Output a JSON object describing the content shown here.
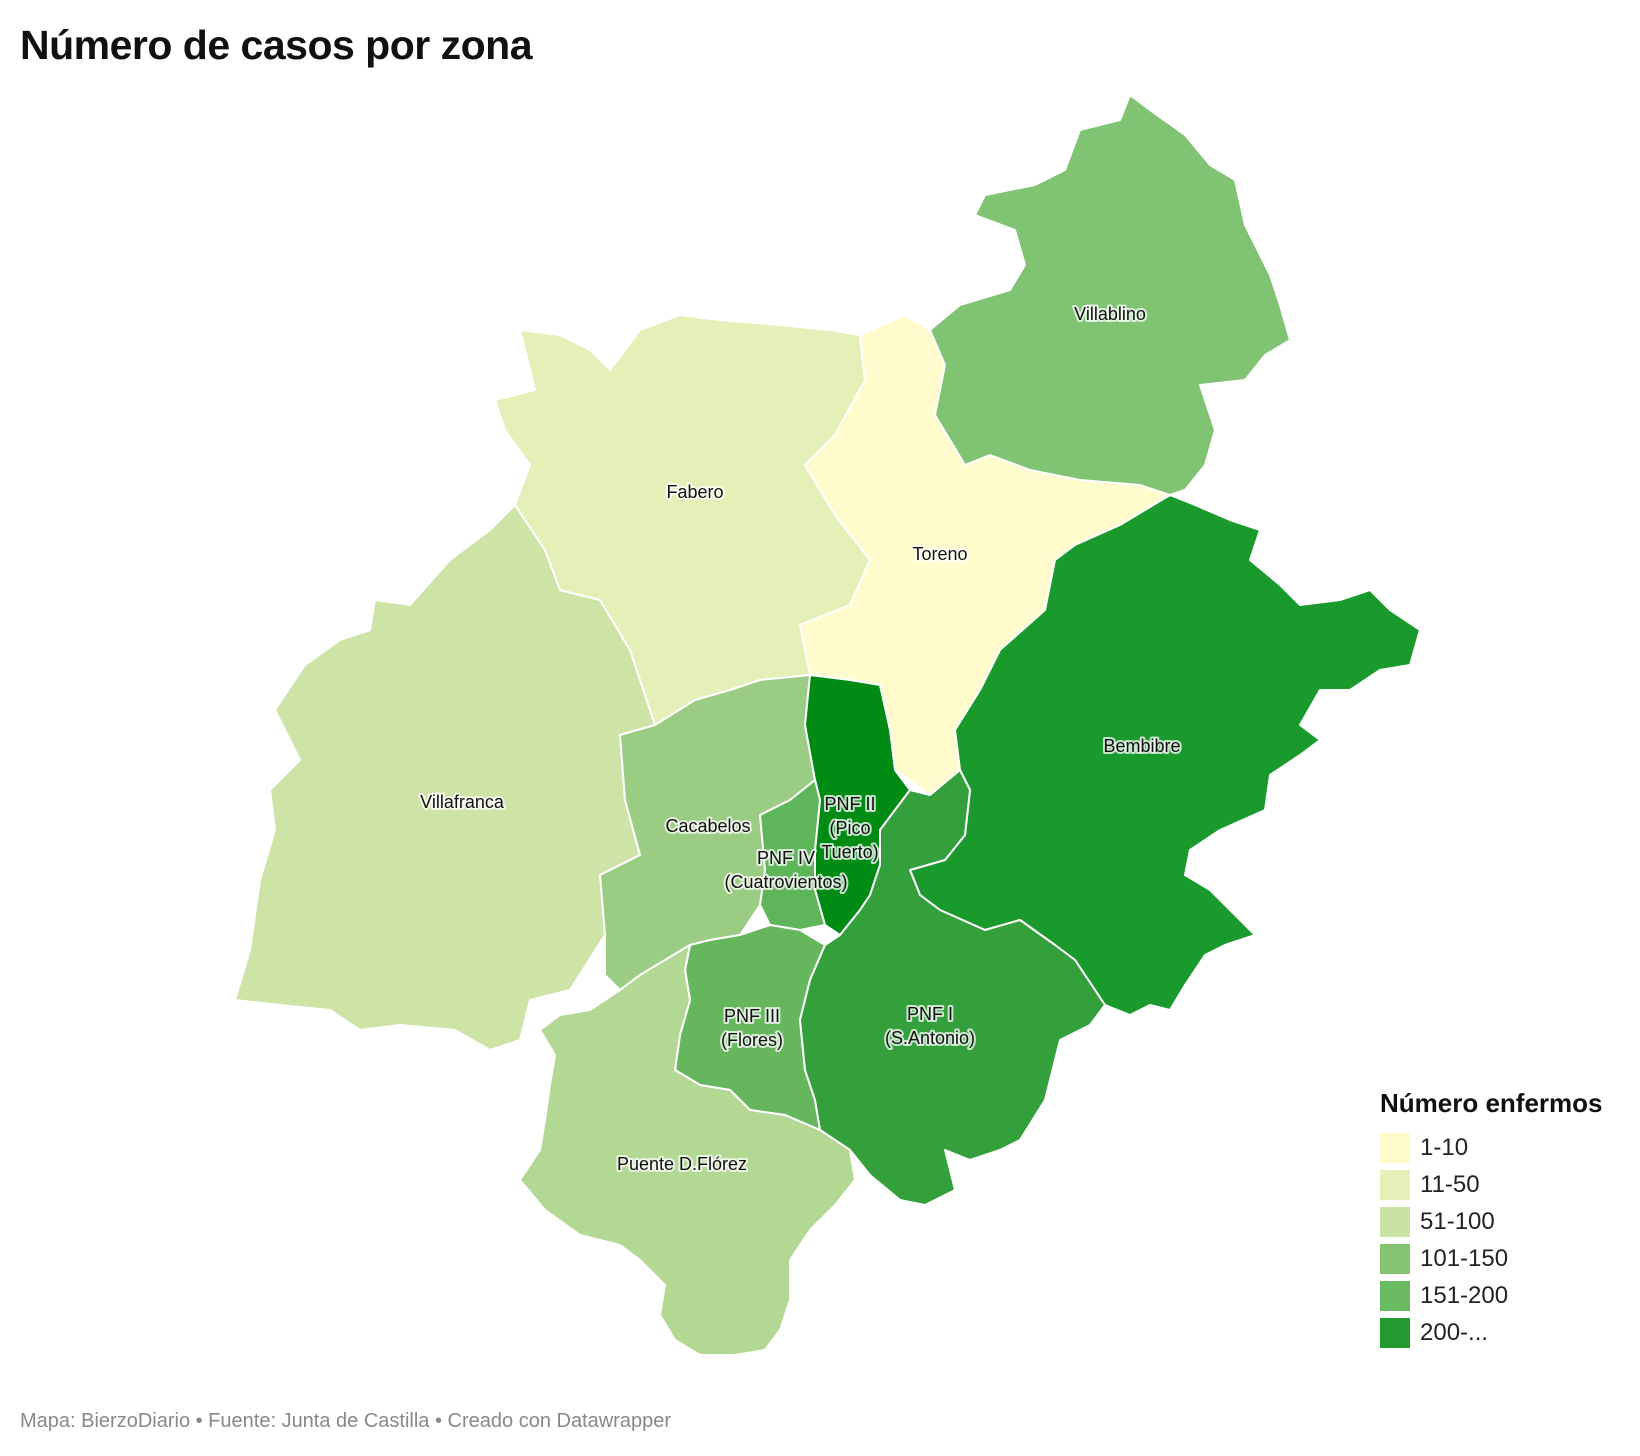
{
  "title": "Número de casos por zona",
  "footer": "Mapa: BierzoDiario • Fuente: Junta de Castilla • Creado con Datawrapper",
  "legend": {
    "title": "Número enfermos",
    "items": [
      {
        "label": "1-10",
        "color": "#fffbcc"
      },
      {
        "label": "11-50",
        "color": "#e5f0b9"
      },
      {
        "label": "51-100",
        "color": "#c9e3a3"
      },
      {
        "label": "101-150",
        "color": "#87c472"
      },
      {
        "label": "151-200",
        "color": "#6ab963"
      },
      {
        "label": "200-...",
        "color": "#229a2f"
      }
    ]
  },
  "zones": [
    {
      "id": "villablino",
      "label": "Villablino",
      "color": "#7fc373"
    },
    {
      "id": "fabero",
      "label": "Fabero",
      "color": "#e5f0b9"
    },
    {
      "id": "toreno",
      "label": "Toreno",
      "color": "#fffbcc"
    },
    {
      "id": "villafranca",
      "label": "Villafranca",
      "color": "#cde4a6"
    },
    {
      "id": "cacabelos",
      "label": "Cacabelos",
      "color": "#9bcc83"
    },
    {
      "id": "bembibre",
      "label": "Bembibre",
      "color": "#1a9a2c"
    },
    {
      "id": "pnf2",
      "label": "PNF II (Pico Tuerto)",
      "label_lines": [
        "PNF II",
        "(Pico",
        "Tuerto)"
      ],
      "color": "#008b14"
    },
    {
      "id": "pnf4",
      "label": "PNF IV (Cuatrovientos)",
      "label_lines": [
        "PNF IV",
        "(Cuatrovientos)"
      ],
      "color": "#5eb55a"
    },
    {
      "id": "pnf3",
      "label": "PNF III (Flores)",
      "label_lines": [
        "PNF III",
        "(Flores)"
      ],
      "color": "#66b65e"
    },
    {
      "id": "pnf1",
      "label": "PNF I (S.Antonio)",
      "label_lines": [
        "PNF I",
        "(S.Antonio)"
      ],
      "color": "#33a03b"
    },
    {
      "id": "ponferrada_e",
      "label": "",
      "color": "#3aa443"
    },
    {
      "id": "puente",
      "label": "Puente D.Flórez",
      "color": "#b3d894"
    }
  ]
}
